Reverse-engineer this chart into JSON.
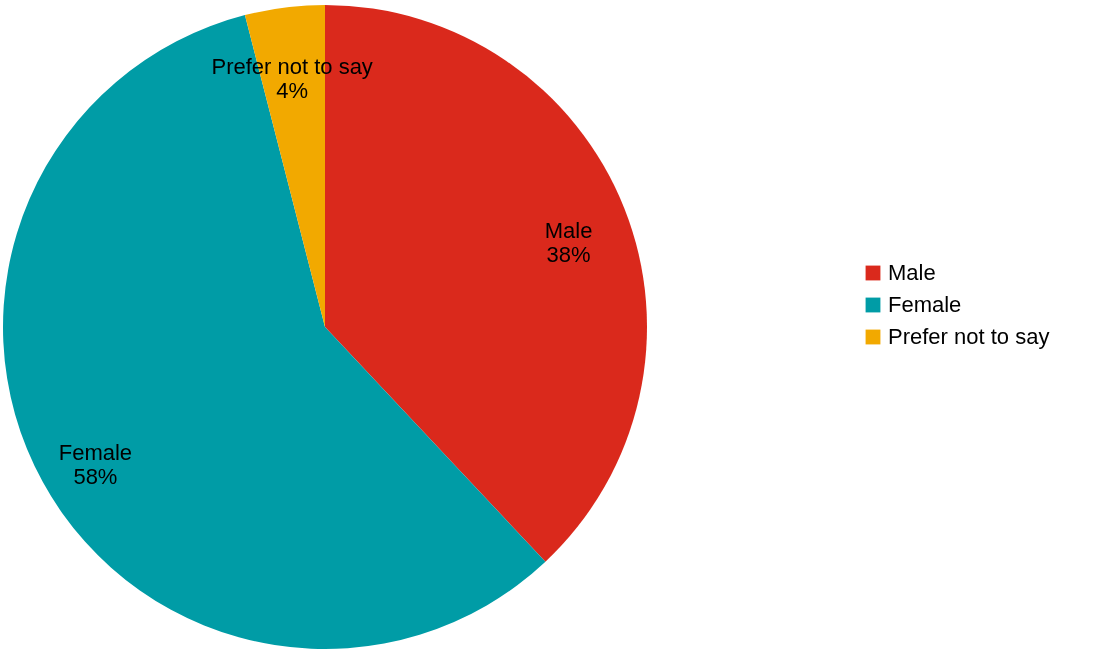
{
  "chart_data": {
    "type": "pie",
    "categories": [
      "Male",
      "Female",
      "Prefer not to say"
    ],
    "values": [
      38,
      58,
      4
    ],
    "colors": [
      "#da291c",
      "#009ca6",
      "#f2a900"
    ],
    "value_labels": [
      "38%",
      "58%",
      "4%"
    ],
    "legend": "right"
  }
}
